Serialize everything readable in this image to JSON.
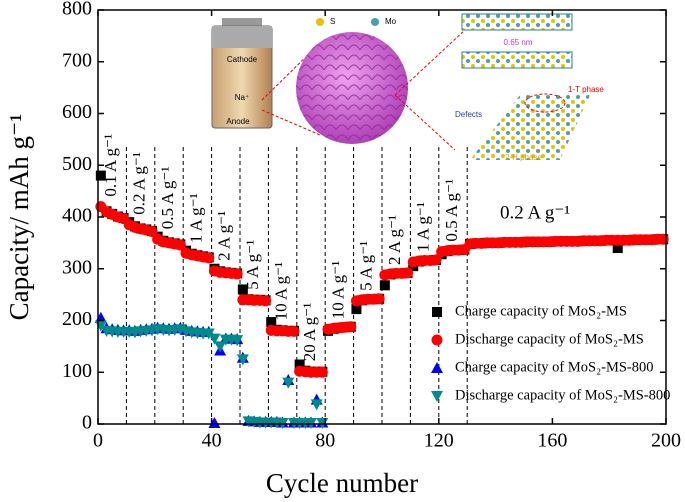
{
  "chart_data": {
    "type": "scatter",
    "x_label": "Cycle number",
    "y_label": "Capacity/ mAh g⁻¹",
    "xlim": [
      0,
      200
    ],
    "xticks": [
      0,
      40,
      80,
      120,
      160,
      200
    ],
    "ylim": [
      0,
      800
    ],
    "yticks": [
      0,
      100,
      200,
      300,
      400,
      500,
      600,
      700,
      800
    ],
    "rate_separators": [
      10,
      20,
      30,
      40,
      50,
      60,
      70,
      80,
      90,
      100,
      110,
      120,
      130
    ],
    "rate_labels": [
      "0.1 A g⁻¹",
      "0.2 A g⁻¹",
      "0.5 A g⁻¹",
      "1 A g⁻¹",
      "2 A g⁻¹",
      "5 A g⁻¹",
      "10 A g⁻¹",
      "20 A g⁻¹",
      "10 A g⁻¹",
      "5 A g⁻¹",
      "2 A g⁻¹",
      "1 A g⁻¹",
      "0.5 A g⁻¹",
      "0.2 A g⁻¹"
    ],
    "legend_position": "lower right",
    "x": [
      1,
      3,
      5,
      7,
      9,
      11,
      13,
      15,
      17,
      19,
      21,
      23,
      25,
      27,
      29,
      31,
      33,
      35,
      37,
      39,
      41,
      43,
      45,
      47,
      49,
      51,
      53,
      55,
      57,
      59,
      61,
      63,
      65,
      67,
      69,
      71,
      73,
      75,
      77,
      79,
      81,
      83,
      85,
      87,
      89,
      91,
      93,
      95,
      97,
      99,
      101,
      103,
      105,
      107,
      109,
      111,
      113,
      115,
      117,
      119,
      121,
      123,
      125,
      127,
      129,
      131,
      133,
      135,
      137,
      139,
      141,
      143,
      145,
      147,
      149,
      151,
      153,
      155,
      157,
      159,
      161,
      163,
      165,
      167,
      169,
      171,
      173,
      175,
      177,
      179,
      181,
      183,
      185,
      187,
      189,
      191,
      193,
      195,
      197,
      199
    ],
    "series": [
      {
        "name": "Charge capacity of MoS₂-MS",
        "color": "#000000",
        "marker": "square",
        "values": [
          480,
          411,
          406,
          401,
          398,
          390,
          382,
          378,
          376,
          373,
          362,
          354,
          351,
          349,
          347,
          335,
          329,
          326,
          324,
          322,
          300,
          295,
          293,
          292,
          291,
          260,
          241,
          240,
          240,
          239,
          197,
          182,
          181,
          180,
          180,
          115,
          103,
          101,
          101,
          101,
          180,
          184,
          186,
          187,
          188,
          222,
          239,
          241,
          241,
          242,
          268,
          289,
          291,
          291,
          292,
          305,
          314,
          316,
          316,
          317,
          328,
          334,
          336,
          336,
          337,
          348,
          349,
          349,
          350,
          350,
          350,
          351,
          351,
          351,
          351,
          352,
          352,
          352,
          352,
          352,
          353,
          353,
          353,
          353,
          353,
          354,
          354,
          354,
          354,
          355,
          355,
          340,
          355,
          355,
          356,
          356,
          356,
          356,
          357,
          357
        ]
      },
      {
        "name": "Discharge capacity of MoS₂-MS",
        "color": "#ff0000",
        "marker": "circle",
        "values": [
          420,
          410,
          405,
          400,
          397,
          385,
          380,
          377,
          375,
          372,
          357,
          352,
          350,
          348,
          346,
          330,
          327,
          325,
          323,
          321,
          296,
          293,
          292,
          291,
          290,
          240,
          240,
          239,
          239,
          238,
          181,
          180,
          180,
          179,
          179,
          102,
          101,
          100,
          100,
          100,
          183,
          185,
          186,
          187,
          188,
          238,
          240,
          241,
          241,
          242,
          288,
          290,
          291,
          291,
          292,
          313,
          315,
          316,
          316,
          317,
          333,
          335,
          336,
          336,
          337,
          348,
          349,
          349,
          350,
          350,
          350,
          351,
          351,
          351,
          351,
          352,
          352,
          352,
          352,
          352,
          353,
          353,
          353,
          353,
          353,
          354,
          354,
          354,
          354,
          355,
          355,
          355,
          355,
          355,
          356,
          356,
          356,
          356,
          357,
          357
        ]
      },
      {
        "name": "Charge capacity of MoS₂-MS-800",
        "color": "#0000ff",
        "marker": "triangle-up",
        "values": [
          205,
          185,
          183,
          182,
          181,
          181,
          180,
          182,
          183,
          184,
          186,
          185,
          184,
          185,
          186,
          182,
          180,
          179,
          178,
          178,
          2,
          142,
          165,
          165,
          164,
          128,
          6,
          5,
          4,
          4,
          4,
          4,
          3,
          85,
          3,
          3,
          3,
          3,
          47,
          3,
          null,
          null,
          null,
          null,
          null,
          null,
          null,
          null,
          null,
          null,
          null,
          null,
          null,
          null,
          null,
          null,
          null,
          null,
          null,
          null,
          null,
          null,
          null,
          null,
          null,
          null,
          null,
          null,
          null,
          null,
          null,
          null,
          null,
          null,
          null,
          null,
          null,
          null,
          null,
          null,
          null,
          null,
          null,
          null,
          null,
          null,
          null,
          null,
          null,
          null,
          null,
          null,
          null,
          null,
          null,
          null,
          null,
          null,
          null,
          null
        ]
      },
      {
        "name": "Discharge capacity of MoS₂-MS-800",
        "color": "#008b8b",
        "marker": "triangle-down",
        "values": [
          190,
          180,
          179,
          178,
          178,
          178,
          177,
          179,
          180,
          181,
          183,
          182,
          181,
          182,
          183,
          179,
          177,
          176,
          175,
          175,
          165,
          150,
          163,
          163,
          162,
          125,
          5,
          4,
          3,
          3,
          3,
          3,
          2,
          80,
          2,
          2,
          2,
          2,
          38,
          2,
          null,
          null,
          null,
          null,
          null,
          null,
          null,
          null,
          null,
          null,
          null,
          null,
          null,
          null,
          null,
          null,
          null,
          null,
          null,
          null,
          null,
          null,
          null,
          null,
          null,
          null,
          null,
          null,
          null,
          null,
          null,
          null,
          null,
          null,
          null,
          null,
          null,
          null,
          null,
          null,
          null,
          null,
          null,
          null,
          null,
          null,
          null,
          null,
          null,
          null,
          null,
          null,
          null,
          null,
          null,
          null,
          null,
          null,
          null,
          null
        ]
      }
    ],
    "inset": {
      "s": "S",
      "mo": "Mo",
      "cathode": "Cathode",
      "na": "Na⁺",
      "anode": "Anode",
      "spacing": "0.65 nm",
      "t_phase": "1-T phase",
      "defects": "Defects",
      "h_phase": "2-H phase"
    }
  }
}
